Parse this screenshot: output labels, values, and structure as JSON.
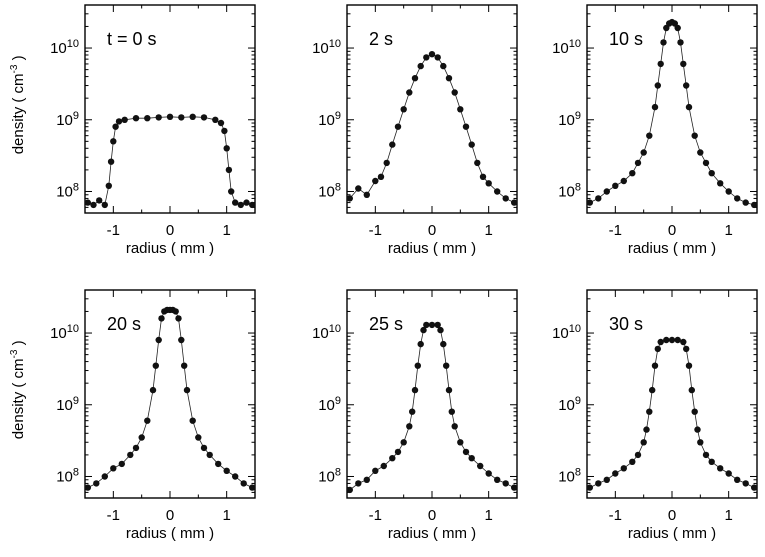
{
  "chart_data": [
    {
      "type": "scatter",
      "panel_label": "t = 0 s",
      "xlabel": "radius ( mm )",
      "ylabel": "density ( cm",
      "ylabel_sup": "-3",
      "ylabel_end": " )",
      "xlim": [
        -1.5,
        1.5
      ],
      "ylim_log10": [
        7.7,
        10.6
      ],
      "yscale": "log",
      "xticks": [
        -1,
        0,
        1
      ],
      "xtick_labels": [
        "-1",
        "0",
        "1"
      ],
      "yticks": [
        100000000.0,
        1000000000.0,
        10000000000.0
      ],
      "ytick_base": "10",
      "ytick_exps": [
        "8",
        "9",
        "10"
      ],
      "grid": false,
      "x": [
        -1.45,
        -1.35,
        -1.25,
        -1.15,
        -1.08,
        -1.04,
        -1.0,
        -0.96,
        -0.9,
        -0.8,
        -0.6,
        -0.4,
        -0.2,
        0.0,
        0.2,
        0.4,
        0.6,
        0.8,
        0.9,
        0.96,
        1.0,
        1.04,
        1.08,
        1.15,
        1.25,
        1.35,
        1.45
      ],
      "y": [
        70000000.0,
        65000000.0,
        75000000.0,
        65000000.0,
        120000000.0,
        260000000.0,
        500000000.0,
        800000000.0,
        950000000.0,
        1000000000.0,
        1050000000.0,
        1050000000.0,
        1080000000.0,
        1100000000.0,
        1080000000.0,
        1100000000.0,
        1080000000.0,
        1000000000.0,
        900000000.0,
        700000000.0,
        400000000.0,
        200000000.0,
        100000000.0,
        70000000.0,
        65000000.0,
        70000000.0,
        65000000.0
      ]
    },
    {
      "type": "scatter",
      "panel_label": "2 s",
      "xlabel": "radius ( mm )",
      "xlim": [
        -1.5,
        1.5
      ],
      "ylim_log10": [
        7.7,
        10.6
      ],
      "yscale": "log",
      "xticks": [
        -1,
        0,
        1
      ],
      "xtick_labels": [
        "-1",
        "0",
        "1"
      ],
      "yticks": [
        100000000.0,
        1000000000.0,
        10000000000.0
      ],
      "ytick_base": "10",
      "ytick_exps": [
        "8",
        "9",
        "10"
      ],
      "grid": false,
      "x": [
        -1.45,
        -1.3,
        -1.15,
        -1.0,
        -0.9,
        -0.8,
        -0.7,
        -0.6,
        -0.5,
        -0.4,
        -0.3,
        -0.2,
        -0.1,
        0.0,
        0.1,
        0.2,
        0.3,
        0.4,
        0.5,
        0.6,
        0.7,
        0.8,
        0.9,
        1.0,
        1.15,
        1.3,
        1.45
      ],
      "y": [
        80000000.0,
        110000000.0,
        90000000.0,
        140000000.0,
        160000000.0,
        250000000.0,
        450000000.0,
        800000000.0,
        1400000000.0,
        2400000000.0,
        3800000000.0,
        5600000000.0,
        7400000000.0,
        8200000000.0,
        7400000000.0,
        5600000000.0,
        3800000000.0,
        2400000000.0,
        1400000000.0,
        800000000.0,
        450000000.0,
        250000000.0,
        160000000.0,
        130000000.0,
        100000000.0,
        80000000.0,
        70000000.0
      ]
    },
    {
      "type": "scatter",
      "panel_label": "10 s",
      "xlabel": "radius ( mm )",
      "xlim": [
        -1.5,
        1.5
      ],
      "ylim_log10": [
        7.7,
        10.6
      ],
      "yscale": "log",
      "xticks": [
        -1,
        0,
        1
      ],
      "xtick_labels": [
        "-1",
        "0",
        "1"
      ],
      "yticks": [
        100000000.0,
        1000000000.0,
        10000000000.0
      ],
      "ytick_base": "10",
      "ytick_exps": [
        "8",
        "9",
        "10"
      ],
      "grid": false,
      "x": [
        -1.45,
        -1.3,
        -1.15,
        -1.0,
        -0.85,
        -0.7,
        -0.6,
        -0.5,
        -0.4,
        -0.3,
        -0.25,
        -0.2,
        -0.15,
        -0.1,
        -0.05,
        0.0,
        0.05,
        0.1,
        0.15,
        0.2,
        0.25,
        0.3,
        0.4,
        0.5,
        0.6,
        0.7,
        0.85,
        1.0,
        1.15,
        1.3,
        1.45
      ],
      "y": [
        70000000.0,
        80000000.0,
        100000000.0,
        120000000.0,
        140000000.0,
        180000000.0,
        250000000.0,
        350000000.0,
        600000000.0,
        1500000000.0,
        3000000000.0,
        6000000000.0,
        12000000000.0,
        19000000000.0,
        22000000000.0,
        23000000000.0,
        22000000000.0,
        19000000000.0,
        12000000000.0,
        6000000000.0,
        3000000000.0,
        1500000000.0,
        600000000.0,
        350000000.0,
        250000000.0,
        180000000.0,
        130000000.0,
        100000000.0,
        80000000.0,
        70000000.0,
        65000000.0
      ]
    },
    {
      "type": "scatter",
      "panel_label": "20 s",
      "xlabel": "radius ( mm )",
      "ylabel": "density ( cm",
      "ylabel_sup": "-3",
      "ylabel_end": " )",
      "xlim": [
        -1.5,
        1.5
      ],
      "ylim_log10": [
        7.7,
        10.6
      ],
      "yscale": "log",
      "xticks": [
        -1,
        0,
        1
      ],
      "xtick_labels": [
        "-1",
        "0",
        "1"
      ],
      "yticks": [
        100000000.0,
        1000000000.0,
        10000000000.0
      ],
      "ytick_base": "10",
      "ytick_exps": [
        "8",
        "9",
        "10"
      ],
      "grid": false,
      "x": [
        -1.45,
        -1.3,
        -1.15,
        -1.0,
        -0.85,
        -0.7,
        -0.6,
        -0.5,
        -0.4,
        -0.3,
        -0.25,
        -0.2,
        -0.15,
        -0.1,
        -0.05,
        0.0,
        0.05,
        0.1,
        0.15,
        0.2,
        0.25,
        0.3,
        0.4,
        0.5,
        0.6,
        0.7,
        0.85,
        1.0,
        1.15,
        1.3,
        1.45
      ],
      "y": [
        70000000.0,
        80000000.0,
        100000000.0,
        130000000.0,
        150000000.0,
        200000000.0,
        250000000.0,
        350000000.0,
        600000000.0,
        1600000000.0,
        3500000000.0,
        8000000000.0,
        16000000000.0,
        20000000000.0,
        21000000000.0,
        21000000000.0,
        21000000000.0,
        20000000000.0,
        16000000000.0,
        8000000000.0,
        3500000000.0,
        1600000000.0,
        600000000.0,
        350000000.0,
        250000000.0,
        200000000.0,
        150000000.0,
        120000000.0,
        100000000.0,
        80000000.0,
        70000000.0
      ]
    },
    {
      "type": "scatter",
      "panel_label": "25 s",
      "xlabel": "radius ( mm )",
      "xlim": [
        -1.5,
        1.5
      ],
      "ylim_log10": [
        7.7,
        10.6
      ],
      "yscale": "log",
      "xticks": [
        -1,
        0,
        1
      ],
      "xtick_labels": [
        "-1",
        "0",
        "1"
      ],
      "yticks": [
        100000000.0,
        1000000000.0,
        10000000000.0
      ],
      "ytick_base": "10",
      "ytick_exps": [
        "8",
        "9",
        "10"
      ],
      "grid": false,
      "x": [
        -1.45,
        -1.3,
        -1.15,
        -1.0,
        -0.85,
        -0.7,
        -0.6,
        -0.5,
        -0.4,
        -0.35,
        -0.3,
        -0.25,
        -0.2,
        -0.15,
        -0.1,
        0.0,
        0.1,
        0.15,
        0.2,
        0.25,
        0.3,
        0.35,
        0.4,
        0.5,
        0.6,
        0.7,
        0.85,
        1.0,
        1.15,
        1.3,
        1.45
      ],
      "y": [
        65000000.0,
        80000000.0,
        90000000.0,
        120000000.0,
        140000000.0,
        180000000.0,
        220000000.0,
        300000000.0,
        500000000.0,
        800000000.0,
        1600000000.0,
        3500000000.0,
        7000000000.0,
        11000000000.0,
        13000000000.0,
        13000000000.0,
        13000000000.0,
        11000000000.0,
        7000000000.0,
        3500000000.0,
        1600000000.0,
        800000000.0,
        500000000.0,
        300000000.0,
        220000000.0,
        180000000.0,
        140000000.0,
        110000000.0,
        90000000.0,
        80000000.0,
        70000000.0
      ]
    },
    {
      "type": "scatter",
      "panel_label": "30 s",
      "xlabel": "radius ( mm )",
      "xlim": [
        -1.5,
        1.5
      ],
      "ylim_log10": [
        7.7,
        10.6
      ],
      "yscale": "log",
      "xticks": [
        -1,
        0,
        1
      ],
      "xtick_labels": [
        "-1",
        "0",
        "1"
      ],
      "yticks": [
        100000000.0,
        1000000000.0,
        10000000000.0
      ],
      "ytick_base": "10",
      "ytick_exps": [
        "8",
        "9",
        "10"
      ],
      "grid": false,
      "x": [
        -1.45,
        -1.3,
        -1.15,
        -1.0,
        -0.85,
        -0.7,
        -0.6,
        -0.5,
        -0.45,
        -0.4,
        -0.35,
        -0.3,
        -0.25,
        -0.2,
        -0.1,
        0.0,
        0.1,
        0.2,
        0.25,
        0.3,
        0.35,
        0.4,
        0.45,
        0.5,
        0.6,
        0.7,
        0.85,
        1.0,
        1.15,
        1.3,
        1.45
      ],
      "y": [
        70000000.0,
        80000000.0,
        90000000.0,
        110000000.0,
        130000000.0,
        160000000.0,
        200000000.0,
        300000000.0,
        450000000.0,
        800000000.0,
        1600000000.0,
        3500000000.0,
        6000000000.0,
        7500000000.0,
        8000000000.0,
        8000000000.0,
        8000000000.0,
        7500000000.0,
        6000000000.0,
        3500000000.0,
        1600000000.0,
        800000000.0,
        450000000.0,
        300000000.0,
        200000000.0,
        160000000.0,
        130000000.0,
        110000000.0,
        90000000.0,
        80000000.0,
        70000000.0
      ]
    }
  ]
}
